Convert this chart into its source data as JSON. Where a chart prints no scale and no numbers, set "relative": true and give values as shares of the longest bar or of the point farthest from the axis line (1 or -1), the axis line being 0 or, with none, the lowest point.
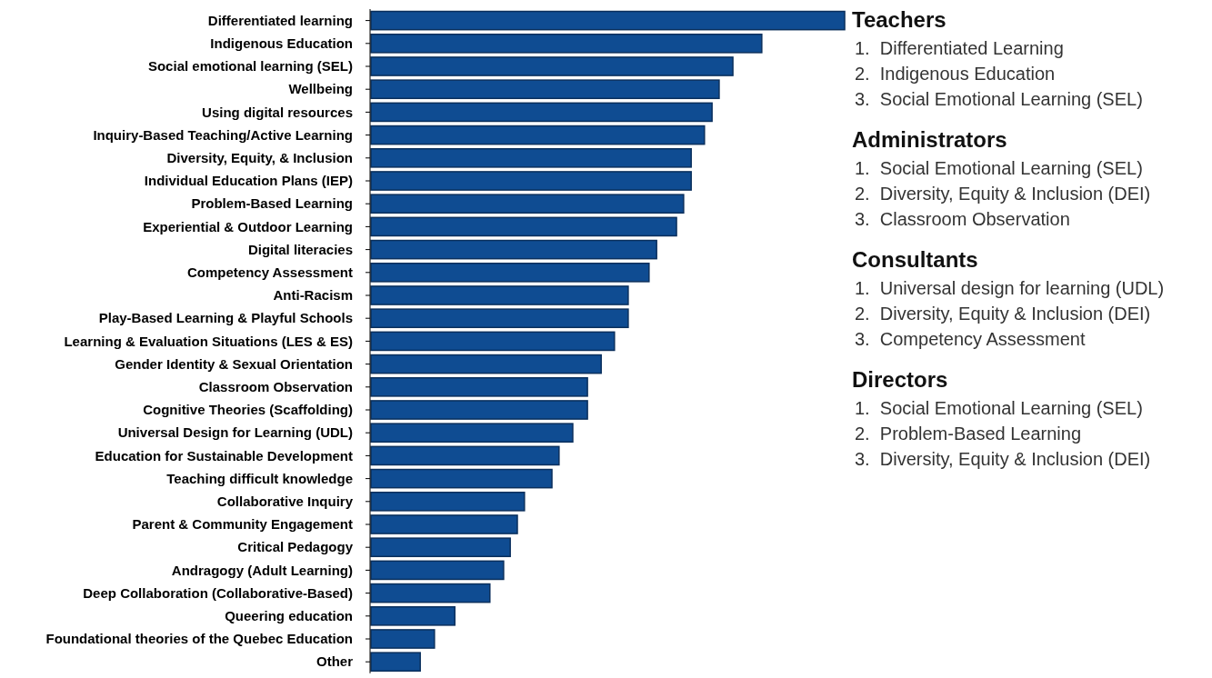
{
  "chart_data": [
    {
      "type": "bar",
      "orientation": "horizontal",
      "relative": true,
      "color": "#0f4c92",
      "categories": [
        "Differentiated learning",
        "Indigenous Education",
        "Social emotional learning (SEL)",
        "Wellbeing",
        "Using digital resources",
        "Inquiry-Based Teaching/Active Learning",
        "Diversity, Equity, & Inclusion",
        "Individual Education Plans (IEP)",
        "Problem-Based Learning",
        "Experiential & Outdoor Learning",
        "Digital literacies",
        "Competency Assessment",
        "Anti-Racism",
        "Play-Based Learning & Playful Schools",
        "Learning & Evaluation Situations (LES & ES)",
        "Gender Identity & Sexual Orientation",
        "Classroom Observation",
        "Cognitive Theories (Scaffolding)",
        "Universal Design for Learning (UDL)",
        "Education for Sustainable Development",
        "Teaching difficult knowledge",
        "Collaborative Inquiry",
        "Parent & Community Engagement",
        "Critical Pedagogy",
        "Andragogy (Adult Learning)",
        "Deep Collaboration (Collaborative-Based)",
        "Queering education",
        "Foundational theories of the Quebec Education",
        "Other"
      ],
      "values": [
        1,
        0.825,
        0.764,
        0.735,
        0.72,
        0.704,
        0.676,
        0.676,
        0.66,
        0.645,
        0.603,
        0.587,
        0.543,
        0.543,
        0.514,
        0.486,
        0.457,
        0.457,
        0.426,
        0.397,
        0.382,
        0.324,
        0.309,
        0.294,
        0.28,
        0.251,
        0.177,
        0.134,
        0.104
      ]
    },
    {
      "type": "other",
      "title": "Teachers",
      "annotations": [
        "1.  Differentiated Learning",
        "2.  Indigenous Education",
        "3.  Social Emotional Learning (SEL)"
      ]
    },
    {
      "type": "other",
      "title": "Administrators",
      "annotations": [
        "1.  Social Emotional Learning (SEL)",
        "2.  Diversity, Equity & Inclusion (DEI)",
        "3.  Classroom Observation"
      ]
    },
    {
      "type": "other",
      "title": "Consultants",
      "annotations": [
        "1.  Universal design for learning (UDL)",
        "2.  Diversity, Equity & Inclusion (DEI)",
        "3.  Competency Assessment"
      ]
    },
    {
      "type": "other",
      "title": "Directors",
      "annotations": [
        "1.  Social Emotional Learning (SEL)",
        "2.  Problem-Based Learning",
        "3.  Diversity, Equity & Inclusion (DEI)"
      ]
    }
  ]
}
